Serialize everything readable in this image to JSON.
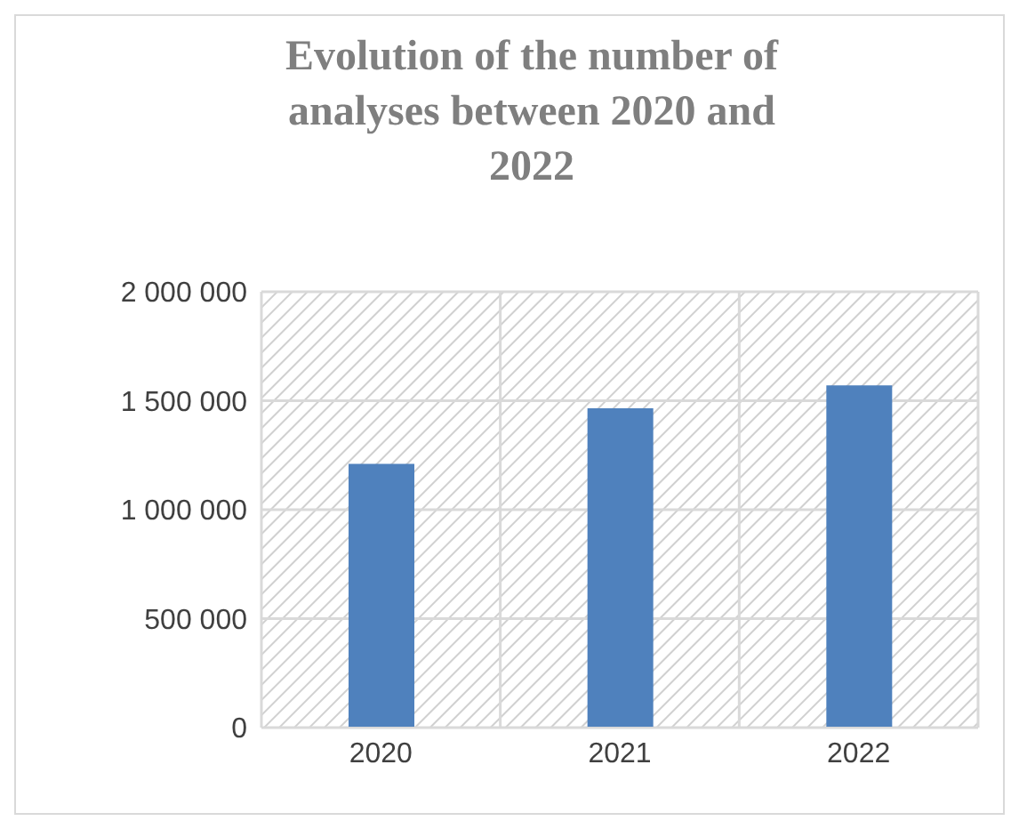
{
  "chart_data": {
    "type": "bar",
    "title": "Evolution of the number of analyses between 2020 and 2022",
    "categories": [
      "2020",
      "2021",
      "2022"
    ],
    "values": [
      1210000,
      1465000,
      1570000
    ],
    "color": "#4f81bd",
    "ylim": [
      0,
      2000000
    ],
    "yticks": [
      {
        "value": 0,
        "label": "0"
      },
      {
        "value": 500000,
        "label": "500 000"
      },
      {
        "value": 1000000,
        "label": "1 000 000"
      },
      {
        "value": 1500000,
        "label": "1 500 000"
      },
      {
        "value": 2000000,
        "label": "2 000 000"
      }
    ],
    "grid": true
  }
}
